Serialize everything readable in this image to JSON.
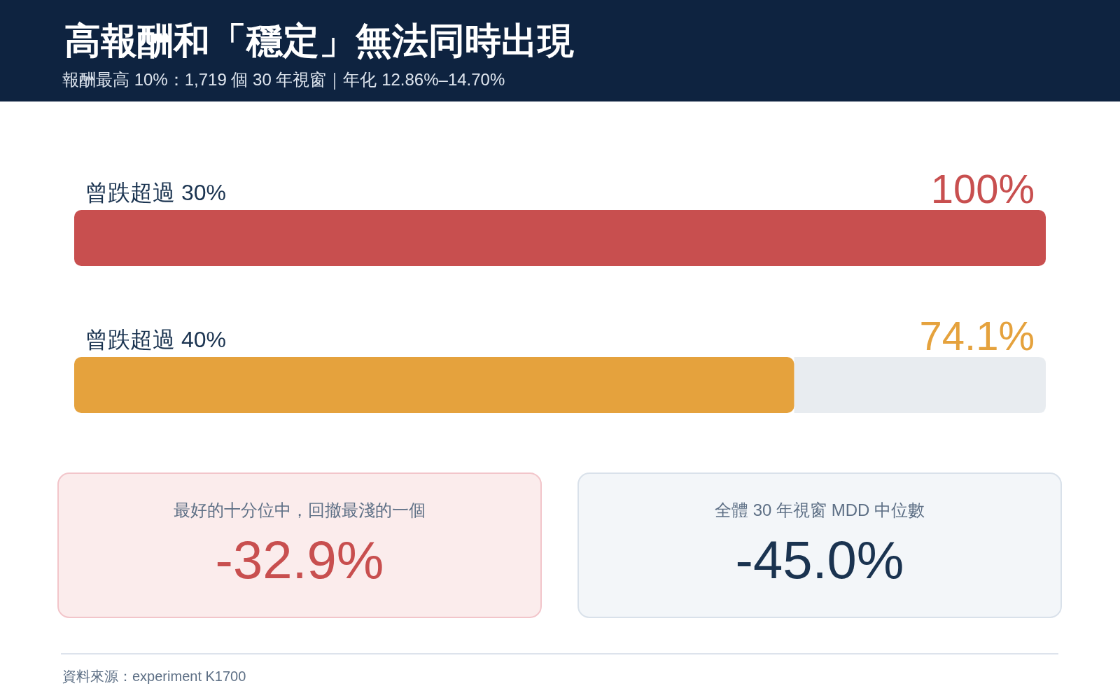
{
  "chart_data": [
    {
      "type": "bar",
      "title": "高報酬和「穩定」無法同時出現",
      "subtitle": "報酬最高 10%：1,719 個 30 年視窗｜年化 12.86%–14.70%",
      "orientation": "horizontal",
      "categories": [
        "曾跌超過 30%",
        "曾跌超過 40%"
      ],
      "values": [
        100,
        74.1
      ],
      "value_labels": [
        "100%",
        "74.1%"
      ],
      "colors": [
        "#c84f4f",
        "#e5a23d"
      ],
      "xlim": [
        0,
        100
      ],
      "annotations": [
        "資料來源：experiment K1700"
      ]
    },
    {
      "type": "other",
      "title": "最好的十分位中，回撤最淺的一個",
      "annotations": [
        "-32.9%"
      ],
      "color": "#c84f4f"
    },
    {
      "type": "other",
      "title": "全體 30 年視窗 MDD 中位數",
      "annotations": [
        "-45.0%"
      ],
      "color": "#1a3350"
    }
  ]
}
